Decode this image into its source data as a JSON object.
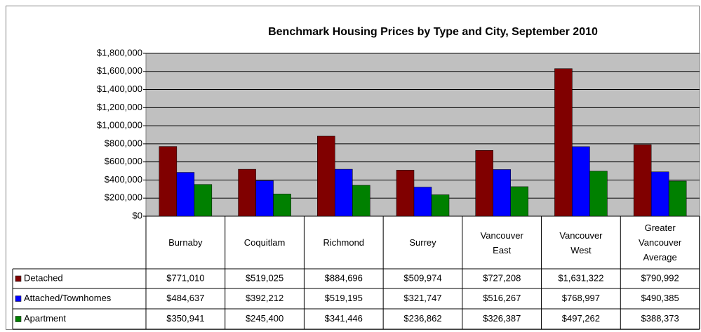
{
  "chart_data": {
    "type": "bar",
    "title": "Benchmark Housing Prices by Type and City, September 2010",
    "categories": [
      "Burnaby",
      "Coquitlam",
      "Richmond",
      "Surrey",
      "Vancouver East",
      "Vancouver West",
      "Greater Vancouver Average"
    ],
    "series": [
      {
        "name": "Detached",
        "color": "#800000",
        "values": [
          771010,
          519025,
          884696,
          509974,
          727208,
          1631322,
          790992
        ],
        "value_labels": [
          "$771,010",
          "$519,025",
          "$884,696",
          "$509,974",
          "$727,208",
          "$1,631,322",
          "$790,992"
        ]
      },
      {
        "name": "Attached/Townhomes",
        "color": "#0000ff",
        "values": [
          484637,
          392212,
          519195,
          321747,
          516267,
          768997,
          490385
        ],
        "value_labels": [
          "$484,637",
          "$392,212",
          "$519,195",
          "$321,747",
          "$516,267",
          "$768,997",
          "$490,385"
        ]
      },
      {
        "name": "Apartment",
        "color": "#008000",
        "values": [
          350941,
          245400,
          341446,
          236862,
          326387,
          497262,
          388373
        ],
        "value_labels": [
          "$350,941",
          "$245,400",
          "$341,446",
          "$236,862",
          "$326,387",
          "$497,262",
          "$388,373"
        ]
      }
    ],
    "ylim": [
      0,
      1800000
    ],
    "yticks": [
      {
        "value": 0,
        "label": "$0"
      },
      {
        "value": 200000,
        "label": "$200,000"
      },
      {
        "value": 400000,
        "label": "$400,000"
      },
      {
        "value": 600000,
        "label": "$600,000"
      },
      {
        "value": 800000,
        "label": "$800,000"
      },
      {
        "value": 1000000,
        "label": "$1,000,000"
      },
      {
        "value": 1200000,
        "label": "$1,200,000"
      },
      {
        "value": 1400000,
        "label": "$1,400,000"
      },
      {
        "value": 1600000,
        "label": "$1,600,000"
      },
      {
        "value": 1800000,
        "label": "$1,800,000"
      }
    ],
    "grid": true,
    "plot_background": "#c0c0c0"
  }
}
